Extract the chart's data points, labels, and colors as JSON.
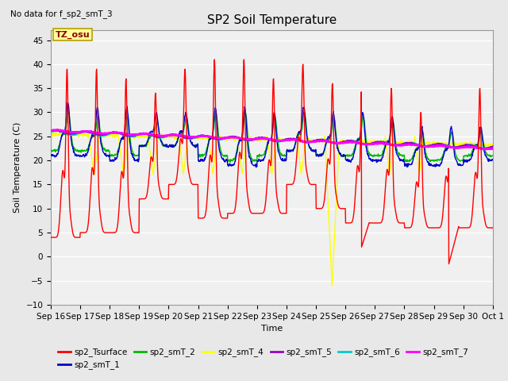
{
  "title": "SP2 Soil Temperature",
  "subtitle": "No data for f_sp2_smT_3",
  "xlabel": "Time",
  "ylabel": "Soil Temperature (C)",
  "ylim": [
    -10,
    47
  ],
  "yticks": [
    -10,
    -5,
    0,
    5,
    10,
    15,
    20,
    25,
    30,
    35,
    40,
    45
  ],
  "bg_color": "#e8e8e8",
  "plot_bg_color": "#f0f0f0",
  "grid_color": "#ffffff",
  "tz_label": "TZ_osu",
  "tz_box_color": "#ffff99",
  "tz_box_edge": "#b8a000",
  "series_colors": {
    "sp2_Tsurface": "#ff0000",
    "sp2_smT_1": "#0000cc",
    "sp2_smT_2": "#00bb00",
    "sp2_smT_4": "#ffff00",
    "sp2_smT_5": "#9900cc",
    "sp2_smT_6": "#00cccc",
    "sp2_smT_7": "#ff00ff"
  },
  "legend_entries": [
    "sp2_Tsurface",
    "sp2_smT_1",
    "sp2_smT_2",
    "sp2_smT_4",
    "sp2_smT_5",
    "sp2_smT_6",
    "sp2_smT_7"
  ],
  "x_tick_labels": [
    "Sep 16",
    "Sep 17",
    "Sep 18",
    "Sep 19",
    "Sep 20",
    "Sep 21",
    "Sep 22",
    "Sep 23",
    "Sep 24",
    "Sep 25",
    "Sep 26",
    "Sep 27",
    "Sep 28",
    "Sep 29",
    "Sep 30",
    "Oct 1"
  ],
  "num_days": 15,
  "pts_per_day": 96,
  "seed": 42
}
